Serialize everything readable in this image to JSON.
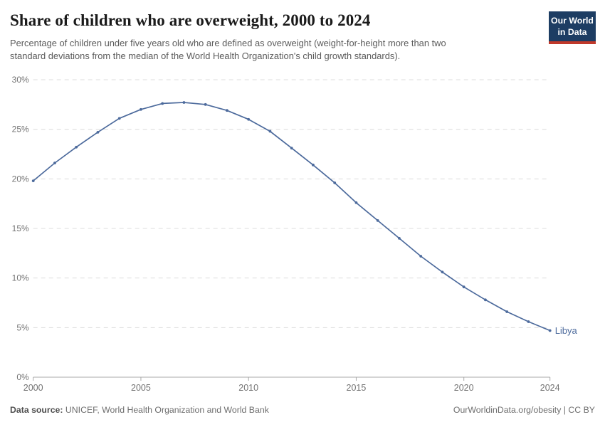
{
  "header": {
    "title": "Share of children who are overweight, 2000 to 2024",
    "subtitle": "Percentage of children under five years old who are defined as overweight (weight-for-height more than two standard deviations from the median of the World Health Organization's child growth standards).",
    "logo": {
      "line1": "Our World",
      "line2": "in Data",
      "bg_color": "#1d3d63",
      "bar_color": "#c0392b"
    }
  },
  "chart_data": {
    "type": "line",
    "title": "Share of children who are overweight, 2000 to 2024",
    "xlabel": "",
    "ylabel": "",
    "xlim": [
      2000,
      2024
    ],
    "ylim": [
      0,
      30
    ],
    "grid": "horizontal-dashed",
    "legend_position": "end-of-line-label",
    "x": [
      2000,
      2001,
      2002,
      2003,
      2004,
      2005,
      2006,
      2007,
      2008,
      2009,
      2010,
      2011,
      2012,
      2013,
      2014,
      2015,
      2016,
      2017,
      2018,
      2019,
      2020,
      2021,
      2022,
      2023,
      2024
    ],
    "series": [
      {
        "name": "Libya",
        "color": "#4c6a9c",
        "values": [
          19.8,
          21.6,
          23.2,
          24.7,
          26.1,
          27.0,
          27.6,
          27.7,
          27.5,
          26.9,
          26.0,
          24.8,
          23.1,
          21.4,
          19.6,
          17.6,
          15.8,
          14.0,
          12.2,
          10.6,
          9.1,
          7.8,
          6.6,
          5.6,
          4.7
        ]
      }
    ],
    "y_ticks": {
      "values": [
        0,
        5,
        10,
        15,
        20,
        25,
        30
      ],
      "labels": [
        "0%",
        "5%",
        "10%",
        "15%",
        "20%",
        "25%",
        "30%"
      ]
    },
    "x_ticks": {
      "values": [
        2000,
        2005,
        2010,
        2015,
        2020,
        2024
      ],
      "labels": [
        "2000",
        "2005",
        "2010",
        "2015",
        "2020",
        "2024"
      ]
    }
  },
  "footer": {
    "source_label": "Data source:",
    "source_text": "UNICEF, World Health Organization and World Bank",
    "attribution": "OurWorldinData.org/obesity | CC BY"
  }
}
